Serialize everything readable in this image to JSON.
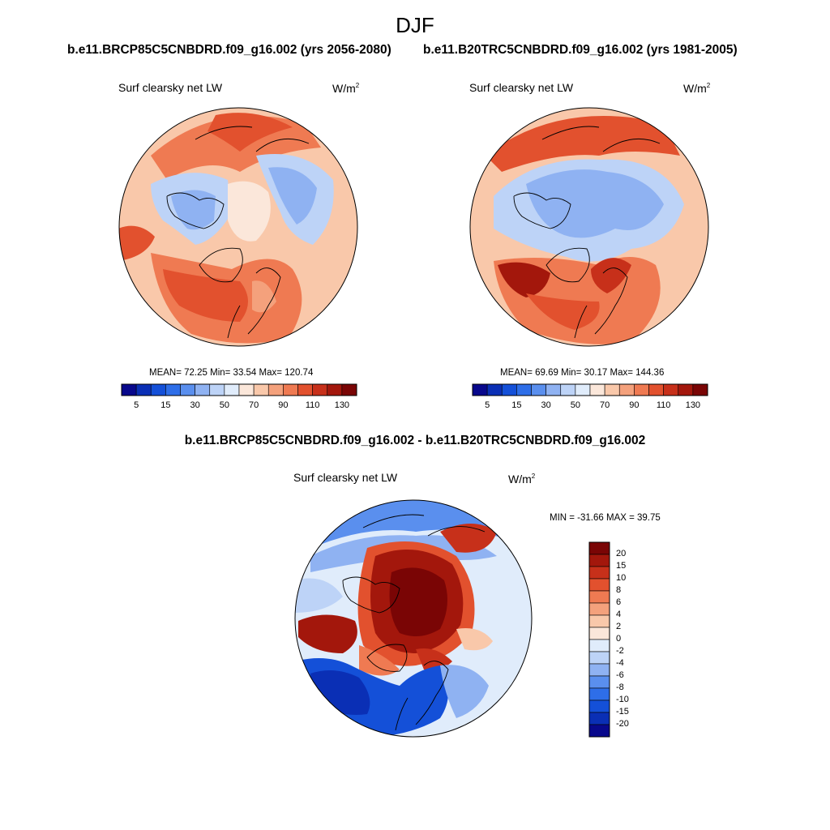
{
  "season": "DJF",
  "panels": [
    {
      "title": "b.e11.BRCP85C5CNBDRD.f09_g16.002 (yrs 2056-2080)",
      "variable": "Surf clearsky net LW",
      "units": "W/m",
      "units_exp": "2",
      "stats": "MEAN=  72.25  Min=  33.54  Max= 120.74"
    },
    {
      "title": "b.e11.B20TRC5CNBDRD.f09_g16.002 (yrs 1981-2005)",
      "variable": "Surf clearsky net LW",
      "units": "W/m",
      "units_exp": "2",
      "stats": "MEAN=  69.69  Min=  30.17  Max= 144.36"
    }
  ],
  "colorbar": {
    "colors": [
      "#08088c",
      "#0a2fb5",
      "#1450d8",
      "#2e6ee8",
      "#5a8fee",
      "#8fb2f2",
      "#bdd3f7",
      "#e0ecfb",
      "#fbe7da",
      "#f9c8aa",
      "#f4a17c",
      "#ef7a52",
      "#e2512e",
      "#c7301a",
      "#a3170c",
      "#7a0505"
    ],
    "tick_labels": [
      "5",
      "15",
      "30",
      "50",
      "70",
      "90",
      "110",
      "130"
    ]
  },
  "diff": {
    "title": "b.e11.BRCP85C5CNBDRD.f09_g16.002 - b.e11.B20TRC5CNBDRD.f09_g16.002",
    "variable": "Surf clearsky net LW",
    "units": "W/m",
    "units_exp": "2",
    "stats": "MIN = -31.66 MAX =  39.75",
    "colorbar": {
      "colors": [
        "#7a0505",
        "#a3170c",
        "#c7301a",
        "#e2512e",
        "#ef7a52",
        "#f4a17c",
        "#f9c8aa",
        "#fbe7da",
        "#e0ecfb",
        "#bdd3f7",
        "#8fb2f2",
        "#5a8fee",
        "#2e6ee8",
        "#1450d8",
        "#0a2fb5",
        "#08088c"
      ],
      "labels": [
        "20",
        "15",
        "10",
        "8",
        "6",
        "4",
        "2",
        "0",
        "-2",
        "-4",
        "-6",
        "-8",
        "-10",
        "-15",
        "-20"
      ]
    }
  }
}
